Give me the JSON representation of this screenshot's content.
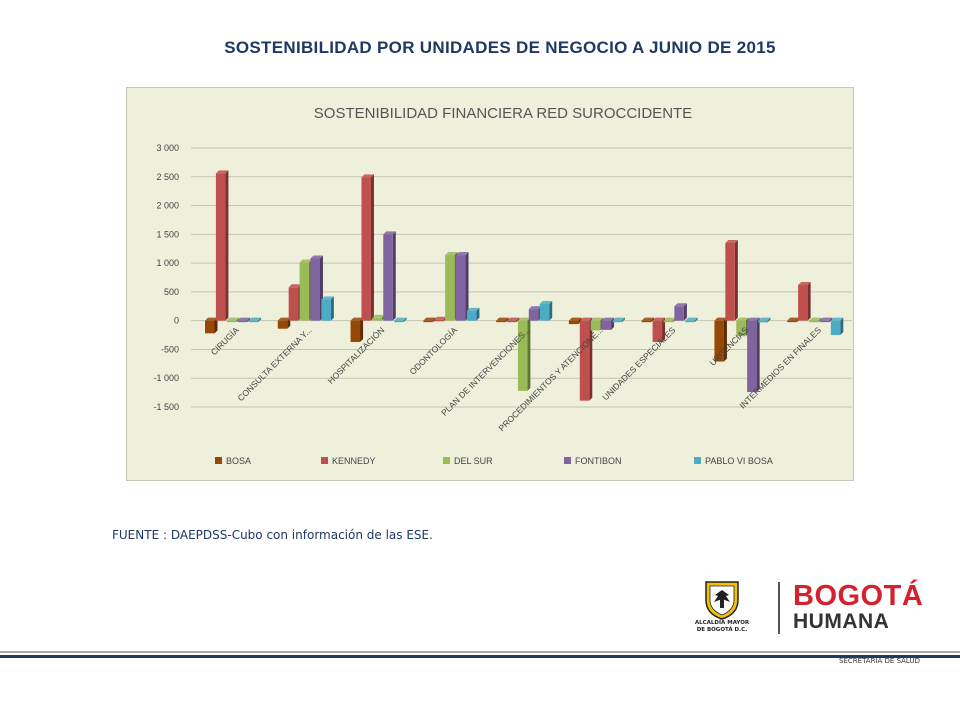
{
  "page": {
    "title": "SOSTENIBILIDAD POR UNIDADES DE NEGOCIO A JUNIO DE 2015",
    "source_note": "FUENTE : DAEPDSS-Cubo con información de las ESE.",
    "footer_label": "SECRETARÍA DE SALUD"
  },
  "logos": {
    "alcaldia_line1": "ALCALDÍA MAYOR",
    "alcaldia_line2": "DE BOGOTÁ D.C.",
    "bogota": "BOGOTÁ",
    "humana": "HUMANA"
  },
  "chart_data": {
    "type": "bar",
    "title": "SOSTENIBILIDAD FINANCIERA RED SUROCCIDENTE",
    "categories": [
      "CIRUGÍA",
      "CONSULTA EXTERNA Y...",
      "HOSPITALIZACIÓN",
      "ODONTOLOGÍA",
      "PLAN DE INTERVENCIONES...",
      "PROCEDIMIENTOS Y ATENCIONE...",
      "UNIDADES ESPECIALES",
      "URGENCIAS",
      "INTERMEDIOS EN FINALES"
    ],
    "series": [
      {
        "name": "BOSA",
        "color": "#974706",
        "values": [
          -220,
          -140,
          -370,
          -15,
          -5,
          -60,
          -15,
          -710,
          -20
        ]
      },
      {
        "name": "KENNEDY",
        "color": "#c0504d",
        "values": [
          2560,
          580,
          2490,
          15,
          -10,
          -1390,
          -370,
          1350,
          620
        ]
      },
      {
        "name": "DEL SUR",
        "color": "#9bbb59",
        "values": [
          -10,
          1010,
          50,
          1140,
          -1220,
          -170,
          -10,
          -270,
          -15
        ]
      },
      {
        "name": "FONTIBON",
        "color": "#8064a2",
        "values": [
          -20,
          1080,
          1500,
          1140,
          200,
          -160,
          250,
          -1240,
          -10
        ]
      },
      {
        "name": "PABLO VI BOSA",
        "color": "#4bacc6",
        "values": [
          -5,
          370,
          -5,
          170,
          290,
          -10,
          -10,
          -30,
          -250
        ]
      }
    ],
    "ylim": [
      -1500,
      3000
    ],
    "yticks": [
      -1500,
      -1000,
      -500,
      0,
      500,
      1000,
      1500,
      2000,
      2500,
      3000
    ],
    "ytick_labels": [
      "-1 500",
      "-1 000",
      "-500",
      "0",
      "500",
      "1 000",
      "1 500",
      "2 000",
      "2 500",
      "3 000"
    ],
    "grid": true,
    "legend": "bottom"
  }
}
